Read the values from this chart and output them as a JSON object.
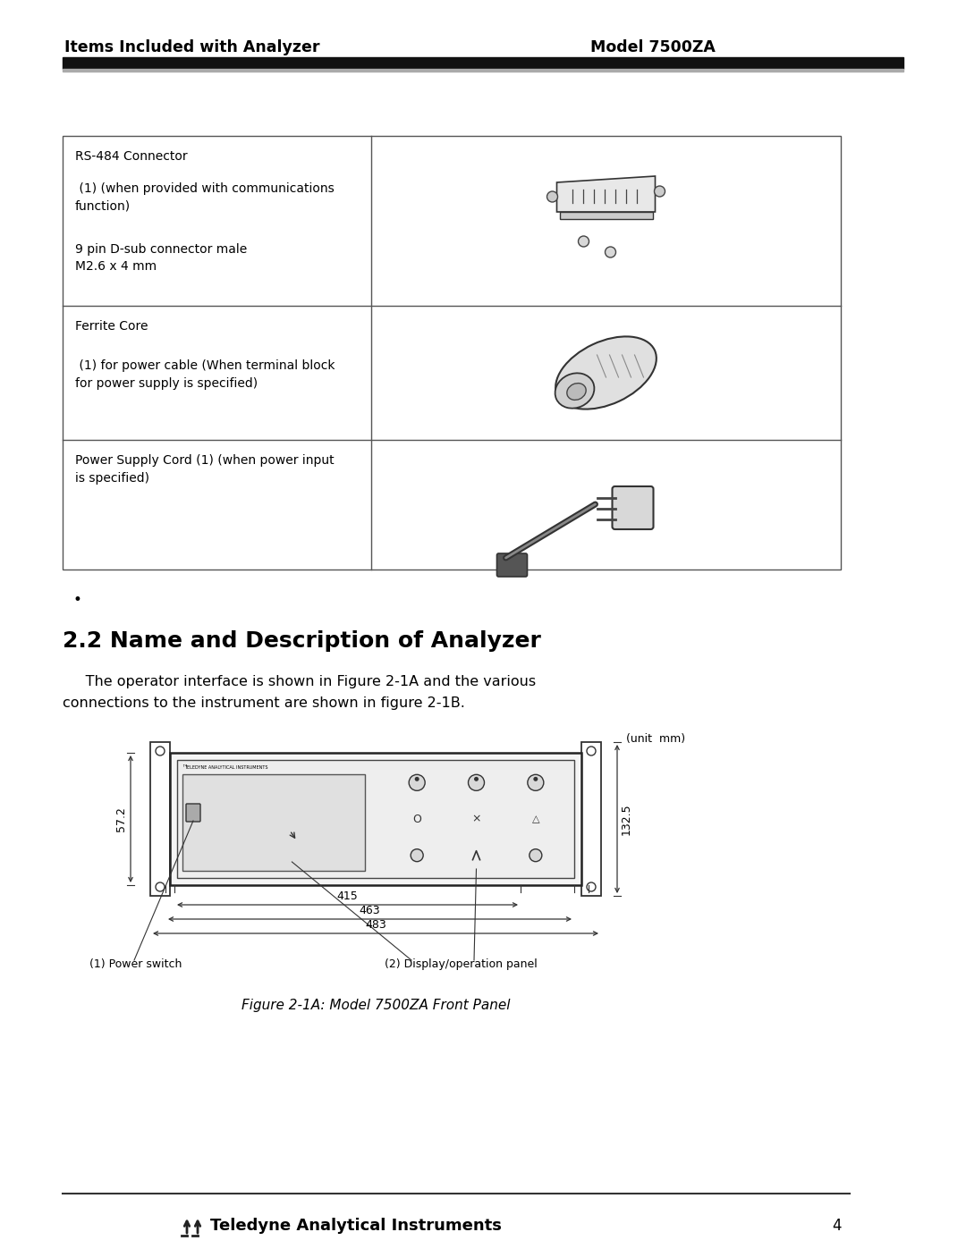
{
  "header_left": "Items Included with Analyzer",
  "header_right": "Model 7500ZA",
  "header_bar_color": "#111111",
  "bg_color": "#ffffff",
  "row0_text_line1": "RS-484 Connector",
  "row0_text_line2": " (1) (when provided with communications\nfunction)",
  "row0_text_line3": "9 pin D-sub connector male\nM2.6 x 4 mm",
  "row1_text_line1": "Ferrite Core",
  "row1_text_line2": " (1) for power cable (When terminal block\nfor power supply is specified)",
  "row2_text_line1": "Power Supply Cord (1) (when power input\nis specified)",
  "section_title": "2.2 Name and Description of Analyzer",
  "section_body1": "     The operator interface is shown in Figure 2-1A and the various",
  "section_body2": "connections to the instrument are shown in figure 2-1B.",
  "figure_caption": "Figure 2-1A: Model 7500ZA Front Panel",
  "footer_text": "Teledyne Analytical Instruments",
  "footer_page": "4",
  "unit_label": "(unit  mm)",
  "dim_415": "415",
  "dim_463": "463",
  "dim_483": "483",
  "dim_572": "57.2",
  "dim_1325": "132.5",
  "label_power": "(1) Power switch",
  "label_display": "(2) Display/operation panel",
  "teledyne_panel_text": "TELEDYNE ANALYTICAL INSTRUMENTS"
}
